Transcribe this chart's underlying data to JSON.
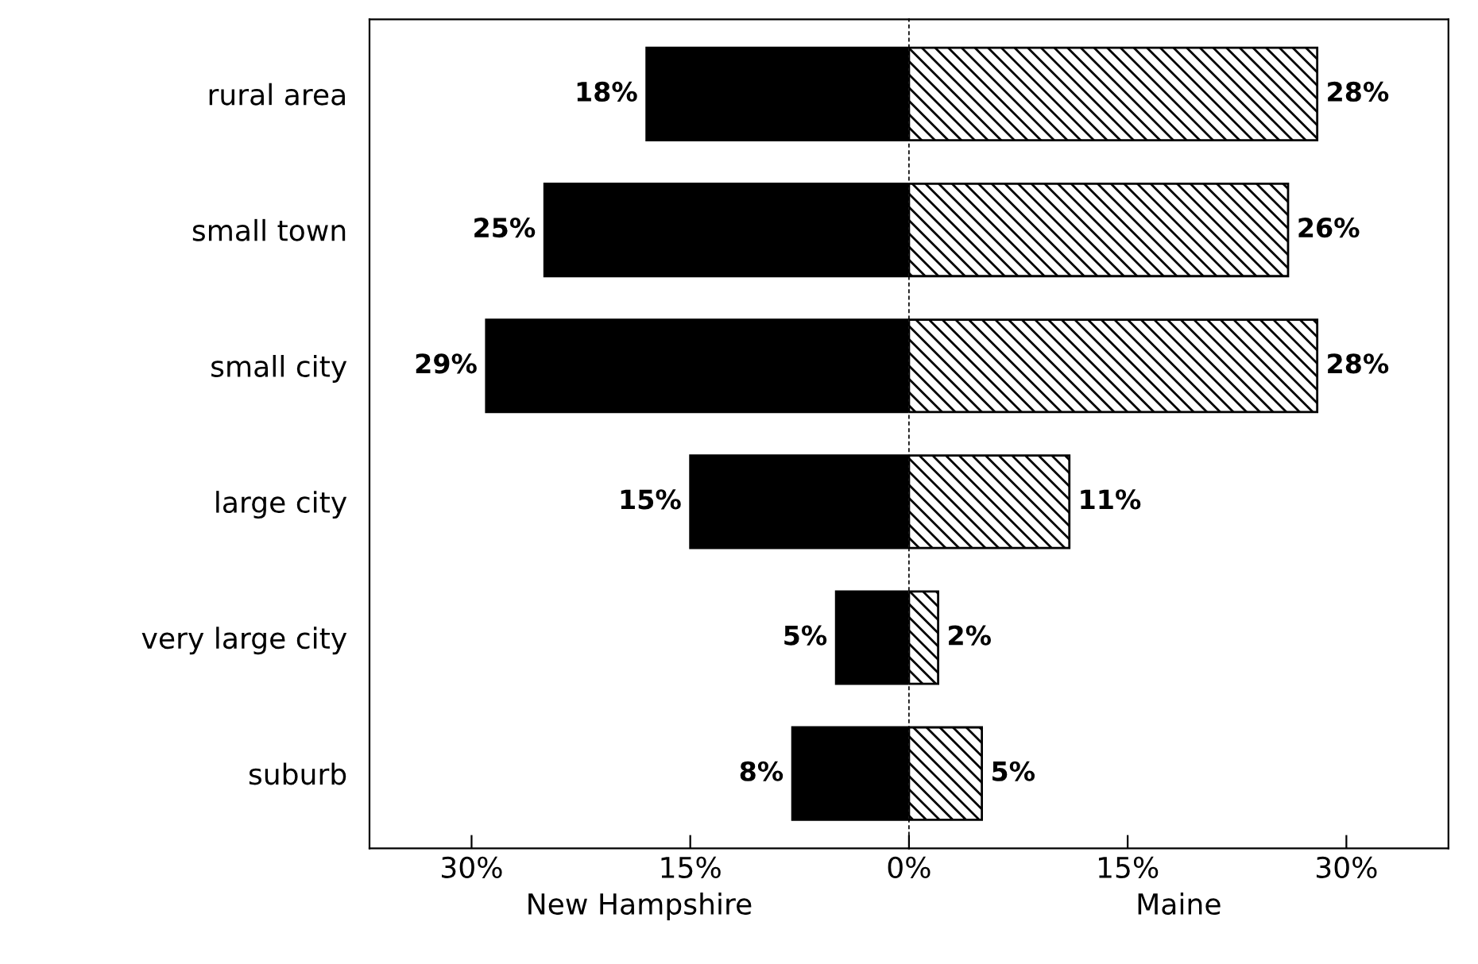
{
  "chart_data": [
    {
      "type": "bar",
      "orientation": "horizontal",
      "xlabel": "New Hampshire",
      "categories": [
        "rural area",
        "small town",
        "small city",
        "large city",
        "very large city",
        "suburb"
      ],
      "series": [
        {
          "color": "#000000",
          "values": [
            18,
            25,
            29,
            15,
            5,
            8
          ],
          "value_labels": [
            "18%",
            "25%",
            "29%",
            "15%",
            "5%",
            "8%"
          ]
        }
      ],
      "xlim": [
        37,
        0
      ],
      "xticks": [
        {
          "value": 30,
          "label": "30%"
        },
        {
          "value": 15,
          "label": "15%"
        }
      ],
      "grid": false
    },
    {
      "type": "bar",
      "orientation": "horizontal",
      "xlabel": "Maine",
      "tick_labels": "x",
      "series": [
        {
          "color": "#000000",
          "values": [
            28,
            26,
            28,
            11,
            2,
            5
          ],
          "value_labels": [
            "28%",
            "26%",
            "28%",
            "11%",
            "2%",
            "5%"
          ]
        }
      ],
      "xlim": [
        0,
        37
      ],
      "xticks": [
        {
          "value": 0,
          "label": "0%"
        },
        {
          "value": 15,
          "label": "15%"
        },
        {
          "value": 30,
          "label": "30%"
        }
      ],
      "grid": false
    }
  ]
}
